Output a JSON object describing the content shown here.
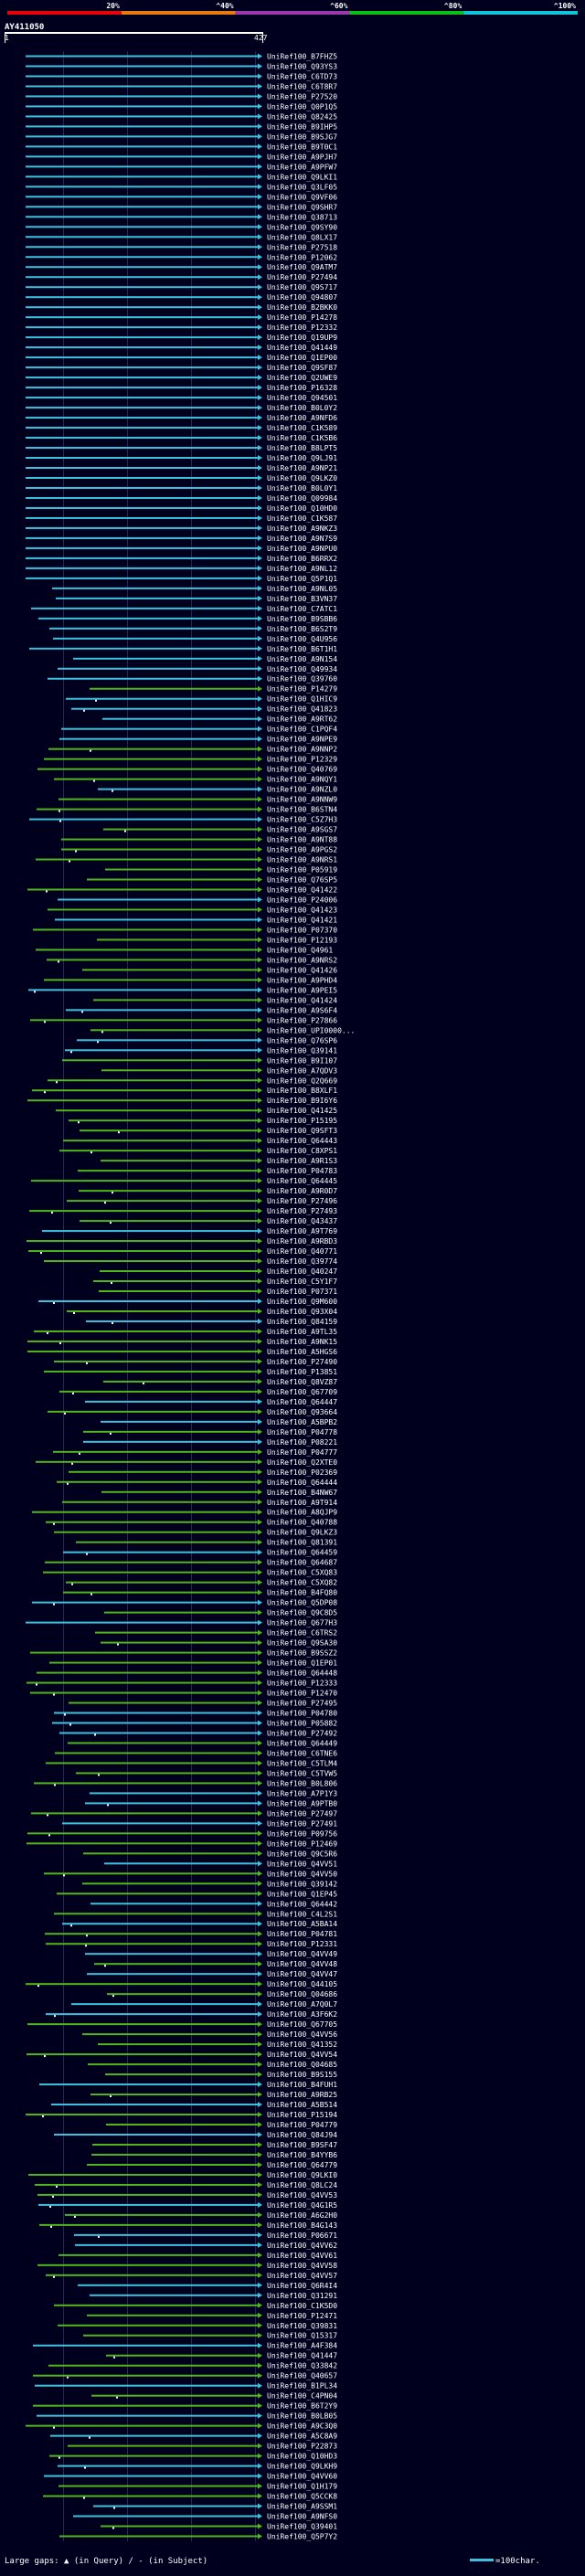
{
  "scale": {
    "ticks": [
      "20%",
      "^40%",
      "^60%",
      "^80%",
      "^100%"
    ],
    "colors": [
      "#e8000a",
      "#e87810",
      "#9b38b0",
      "#0bbf1b",
      "#11c5d9"
    ]
  },
  "query": {
    "name": "AY411050",
    "start": "1",
    "end": "427"
  },
  "hit_colors": {
    "high": "#3cc2dd",
    "medium": "#4fb61d",
    "low": "#2e6a13"
  },
  "hits": [
    "UniRef100_B7FHZ5",
    "UniRef100_Q93YS3",
    "UniRef100_C6TD73",
    "UniRef100_C6T8R7",
    "UniRef100_P27520",
    "UniRef100_Q0P1Q5",
    "UniRef100_Q82425",
    "UniRef100_B9IHP5",
    "UniRef100_B9SJG7",
    "UniRef100_B9T0C1",
    "UniRef100_A9PJH7",
    "UniRef100_A9PFW7",
    "UniRef100_Q9LKI1",
    "UniRef100_Q3LF05",
    "UniRef100_Q9VF06",
    "UniRef100_Q9SHR7",
    "UniRef100_Q38713",
    "UniRef100_Q9SY90",
    "UniRef100_Q8LX17",
    "UniRef100_P27518",
    "UniRef100_P12062",
    "UniRef100_Q9ATM7",
    "UniRef100_P27494",
    "UniRef100_Q9S717",
    "UniRef100_Q94807",
    "UniRef100_B2BKK0",
    "UniRef100_P14278",
    "UniRef100_P12332",
    "UniRef100_Q19UP9",
    "UniRef100_Q41449",
    "UniRef100_Q1EP00",
    "UniRef100_Q9SF87",
    "UniRef100_Q2UWE9",
    "UniRef100_P16328",
    "UniRef100_Q94501",
    "UniRef100_B0L0Y2",
    "UniRef100_A9NFD6",
    "UniRef100_C1K589",
    "UniRef100_C1K5B6",
    "UniRef100_B8LPT5",
    "UniRef100_Q9LJ91",
    "UniRef100_A9NP21",
    "UniRef100_Q9LKZ0",
    "UniRef100_B0L0Y1",
    "UniRef100_Q09984",
    "UniRef100_Q10HD0",
    "UniRef100_C1K587",
    "UniRef100_A9NKZ3",
    "UniRef100_A9N7S9",
    "UniRef100_A9NPU0",
    "UniRef100_B6RRX2",
    "UniRef100_A9NL12",
    "UniRef100_Q5P1Q1",
    "UniRef100_A9NL05",
    "UniRef100_B3VN37",
    "UniRef100_C7ATC1",
    "UniRef100_B9SBB6",
    "UniRef100_B6S2T9",
    "UniRef100_Q4U956",
    "UniRef100_B6T1H1",
    "UniRef100_A9N154",
    "UniRef100_Q49934",
    "UniRef100_Q39760",
    "UniRef100_P14279",
    "UniRef100_Q1HIC9",
    "UniRef100_Q41823",
    "UniRef100_A9RT62",
    "UniRef100_C1PQF4",
    "UniRef100_A9NPE9",
    "UniRef100_A9NNP2",
    "UniRef100_P12329",
    "UniRef100_Q40769",
    "UniRef100_A9NQY1",
    "UniRef100_A9NZL0",
    "UniRef100_A9NNW9",
    "UniRef100_B6STN4",
    "UniRef100_C5Z7H3",
    "UniRef100_A9SGS7",
    "UniRef100_A9NT88",
    "UniRef100_A9PGS2",
    "UniRef100_A9NRS1",
    "UniRef100_P05919",
    "UniRef100_Q76SP5",
    "UniRef100_Q41422",
    "UniRef100_P24006",
    "UniRef100_Q41423",
    "UniRef100_Q41421",
    "UniRef100_P07370",
    "UniRef100_P12193",
    "UniRef100_Q4961",
    "UniRef100_A9NRS2",
    "UniRef100_Q41426",
    "UniRef100_A9PHD4",
    "UniRef100_A9PEI5",
    "UniRef100_Q41424",
    "UniRef100_A9S6F4",
    "UniRef100_P27866",
    "UniRef100_UPI0000...",
    "UniRef100_Q76SP6",
    "UniRef100_Q39141",
    "UniRef100_B9I107",
    "UniRef100_A7QDV3",
    "UniRef100_Q2Q669",
    "UniRef100_B8XLF1",
    "UniRef100_B9I6Y6",
    "UniRef100_Q41425",
    "UniRef100_P15195",
    "UniRef100_Q9SFT3",
    "UniRef100_Q64443",
    "UniRef100_C8XPS1",
    "UniRef100_A9R1S3",
    "UniRef100_P04783",
    "UniRef100_Q64445",
    "UniRef100_A9R0D7",
    "UniRef100_P27496",
    "UniRef100_P27493",
    "UniRef100_Q43437",
    "UniRef100_A9T769",
    "UniRef100_A9RBD3",
    "UniRef100_Q40771",
    "UniRef100_Q39774",
    "UniRef100_Q40247",
    "UniRef100_C5Y1F7",
    "UniRef100_P07371",
    "UniRef100_Q9M600",
    "UniRef100_Q93X04",
    "UniRef100_Q84159",
    "UniRef100_A9TL35",
    "UniRef100_A9NK15",
    "UniRef100_A5HGS6",
    "UniRef100_P27490",
    "UniRef100_P13851",
    "UniRef100_Q8VZ87",
    "UniRef100_Q67709",
    "UniRef100_Q64447",
    "UniRef100_Q93664",
    "UniRef100_A5BPB2",
    "UniRef100_P04778",
    "UniRef100_P08221",
    "UniRef100_P04777",
    "UniRef100_Q2XTE0",
    "UniRef100_P02369",
    "UniRef100_Q64444",
    "UniRef100_B4NW67",
    "UniRef100_A9T914",
    "UniRef100_A8QJP9",
    "UniRef100_Q40788",
    "UniRef100_Q9LKZ3",
    "UniRef100_Q81391",
    "UniRef100_Q64459",
    "UniRef100_Q64687",
    "UniRef100_C5XQ83",
    "UniRef100_C5XQ82",
    "UniRef100_B4FQ80",
    "UniRef100_Q5DP08",
    "UniRef100_Q9C8D5",
    "UniRef100_Q677H3",
    "UniRef100_C6TRS2",
    "UniRef100_Q9SA30",
    "UniRef100_B9SSZ2",
    "UniRef100_Q1EP01",
    "UniRef100_Q64448",
    "UniRef100_P12333",
    "UniRef100_P12470",
    "UniRef100_P27495",
    "UniRef100_P04780",
    "UniRef100_P05882",
    "UniRef100_P27492",
    "UniRef100_Q64449",
    "UniRef100_C6TNE6",
    "UniRef100_C5TLM4",
    "UniRef100_C5TVW5",
    "UniRef100_B0L806",
    "UniRef100_A7P1Y3",
    "UniRef100_A9PTB0",
    "UniRef100_P27497",
    "UniRef100_P27491",
    "UniRef100_P09756",
    "UniRef100_P12469",
    "UniRef100_Q9C5R6",
    "UniRef100_Q4VV51",
    "UniRef100_Q4VV50",
    "UniRef100_Q39142",
    "UniRef100_Q1EP45",
    "UniRef100_Q64442",
    "UniRef100_C4L2S1",
    "UniRef100_A5BA14",
    "UniRef100_P04781",
    "UniRef100_P12331",
    "UniRef100_Q4VV49",
    "UniRef100_Q4VV48",
    "UniRef100_Q4VV47",
    "UniRef100_Q44105",
    "UniRef100_Q04686",
    "UniRef100_A7Q0L7",
    "UniRef100_A3F6K2",
    "UniRef100_Q67705",
    "UniRef100_Q4VV56",
    "UniRef100_Q41352",
    "UniRef100_Q4VV54",
    "UniRef100_Q04685",
    "UniRef100_B9S155",
    "UniRef100_B4FUH1",
    "UniRef100_A9RB25",
    "UniRef100_A5B514",
    "UniRef100_P15194",
    "UniRef100_P04779",
    "UniRef100_Q84J94",
    "UniRef100_B9SF47",
    "UniRef100_B4YYB6",
    "UniRef100_Q64779",
    "UniRef100_Q9LKI0",
    "UniRef100_Q8LC24",
    "UniRef100_Q4VV53",
    "UniRef100_Q4G1R5",
    "UniRef100_A6G2H0",
    "UniRef100_B4G143",
    "UniRef100_P06671",
    "UniRef100_Q4VV62",
    "UniRef100_Q4VV61",
    "UniRef100_Q4VV58",
    "UniRef100_Q4VV57",
    "UniRef100_Q6R4I4",
    "UniRef100_Q31291",
    "UniRef100_C1K5D0",
    "UniRef100_P12471",
    "UniRef100_Q39831",
    "UniRef100_Q15317",
    "UniRef100_A4F384",
    "UniRef100_Q41447",
    "UniRef100_Q33842",
    "UniRef100_Q40657",
    "UniRef100_B1PL34",
    "UniRef100_C4PN04",
    "UniRef100_B6T2Y9",
    "UniRef100_B0LB05",
    "UniRef100_A9C3Q0",
    "UniRef100_A5C8A9",
    "UniRef100_P22873",
    "UniRef100_Q10HD3",
    "UniRef100_Q9LKH9",
    "UniRef100_Q4VV60",
    "UniRef100_Q1H179",
    "UniRef100_Q5CCK8",
    "UniRef100_A9SSM1",
    "UniRef100_A9NFS0",
    "UniRef100_Q39401",
    "UniRef100_Q5P7Y2"
  ],
  "legend": {
    "text": "Large gaps: ▲ (in Query) / - (in Subject)",
    "scale_label": "=100char."
  }
}
